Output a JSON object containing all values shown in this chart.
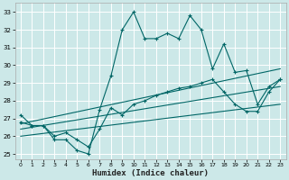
{
  "xlabel": "Humidex (Indice chaleur)",
  "xlim": [
    -0.5,
    23.5
  ],
  "ylim": [
    24.7,
    33.5
  ],
  "yticks": [
    25,
    26,
    27,
    28,
    29,
    30,
    31,
    32,
    33
  ],
  "xticks": [
    0,
    1,
    2,
    3,
    4,
    5,
    6,
    7,
    8,
    9,
    10,
    11,
    12,
    13,
    14,
    15,
    16,
    17,
    18,
    19,
    20,
    21,
    22,
    23
  ],
  "bg_color": "#cce8e8",
  "grid_color": "#ffffff",
  "line_color": "#006666",
  "line1_x": [
    0,
    1,
    2,
    3,
    4,
    5,
    6,
    7,
    8,
    9,
    10,
    11,
    12,
    13,
    14,
    15,
    16,
    17,
    18,
    19,
    20,
    21,
    22,
    23
  ],
  "line1_y": [
    27.2,
    26.6,
    26.6,
    25.8,
    25.8,
    25.2,
    25.0,
    27.5,
    29.4,
    32.0,
    33.0,
    31.5,
    31.5,
    31.8,
    31.5,
    32.8,
    32.0,
    29.8,
    31.2,
    29.6,
    29.7,
    27.8,
    28.8,
    29.2
  ],
  "line2_x": [
    0,
    1,
    2,
    3,
    4,
    5,
    6,
    7,
    8,
    9,
    10,
    11,
    12,
    13,
    14,
    15,
    16,
    17,
    18,
    19,
    20,
    21,
    22,
    23
  ],
  "line2_y": [
    26.8,
    26.6,
    26.6,
    26.0,
    26.2,
    25.8,
    25.4,
    26.4,
    27.6,
    27.2,
    27.8,
    28.0,
    28.3,
    28.5,
    28.7,
    28.8,
    29.0,
    29.2,
    28.5,
    27.8,
    27.4,
    27.4,
    28.5,
    29.2
  ],
  "trend1_x": [
    0,
    23
  ],
  "trend1_y": [
    26.7,
    29.8
  ],
  "trend2_x": [
    0,
    23
  ],
  "trend2_y": [
    26.4,
    28.8
  ],
  "trend3_x": [
    0,
    23
  ],
  "trend3_y": [
    26.0,
    27.8
  ]
}
